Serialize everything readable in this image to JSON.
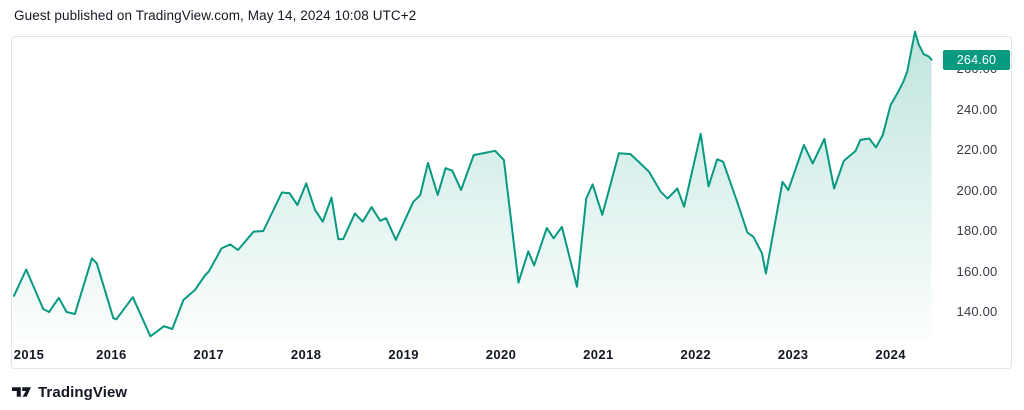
{
  "header": {
    "attribution": "Guest published on TradingView.com, May 14, 2024 10:08 UTC+2"
  },
  "footer": {
    "brand": "TradingView"
  },
  "colors": {
    "accent": "#089981",
    "badge_text": "#ffffff",
    "axis_text": "#363a45",
    "year_text": "#131722",
    "frame_border": "#e0e3eb",
    "background": "#ffffff",
    "header_text": "#131722"
  },
  "chart_data": {
    "type": "area",
    "title": "",
    "xlabel": "",
    "ylabel": "",
    "x_range": [
      "2015-01",
      "2024-05"
    ],
    "ylim": [
      126,
      280
    ],
    "grid": false,
    "legend": false,
    "last_price": 264.6,
    "last_price_label": "264.60",
    "x_ticks": [
      "2015",
      "2016",
      "2017",
      "2018",
      "2019",
      "2020",
      "2021",
      "2022",
      "2023",
      "2024"
    ],
    "y_ticks": [
      {
        "value": 140,
        "label": "140.00"
      },
      {
        "value": 160,
        "label": "160.00"
      },
      {
        "value": 180,
        "label": "180.00"
      },
      {
        "value": 200,
        "label": "200.00"
      },
      {
        "value": 220,
        "label": "220.00"
      },
      {
        "value": 240,
        "label": "240.00"
      },
      {
        "value": 260,
        "label": "260.00"
      }
    ],
    "points": [
      [
        2015.0,
        148.0
      ],
      [
        2015.125,
        161.0
      ],
      [
        2015.3,
        141.5
      ],
      [
        2015.36,
        140.0
      ],
      [
        2015.46,
        147.0
      ],
      [
        2015.54,
        140.0
      ],
      [
        2015.625,
        139.0
      ],
      [
        2015.8,
        166.5
      ],
      [
        2015.85,
        164.0
      ],
      [
        2016.02,
        137.0
      ],
      [
        2016.05,
        136.4
      ],
      [
        2016.22,
        147.3
      ],
      [
        2016.4,
        128.0
      ],
      [
        2016.54,
        133.0
      ],
      [
        2016.625,
        131.6
      ],
      [
        2016.74,
        146.0
      ],
      [
        2016.86,
        151.0
      ],
      [
        2016.96,
        158.0
      ],
      [
        2017.0,
        160.0
      ],
      [
        2017.13,
        171.4
      ],
      [
        2017.22,
        173.4
      ],
      [
        2017.3,
        170.6
      ],
      [
        2017.46,
        179.7
      ],
      [
        2017.56,
        180.0
      ],
      [
        2017.75,
        199.0
      ],
      [
        2017.83,
        198.6
      ],
      [
        2017.91,
        192.8
      ],
      [
        2018.0,
        203.5
      ],
      [
        2018.09,
        190.4
      ],
      [
        2018.17,
        184.6
      ],
      [
        2018.26,
        196.5
      ],
      [
        2018.33,
        176.0
      ],
      [
        2018.38,
        176.0
      ],
      [
        2018.5,
        188.7
      ],
      [
        2018.58,
        184.6
      ],
      [
        2018.67,
        191.8
      ],
      [
        2018.76,
        185.1
      ],
      [
        2018.82,
        186.3
      ],
      [
        2018.92,
        175.6
      ],
      [
        2019.1,
        194.4
      ],
      [
        2019.17,
        197.7
      ],
      [
        2019.25,
        213.7
      ],
      [
        2019.35,
        197.8
      ],
      [
        2019.43,
        211.0
      ],
      [
        2019.5,
        209.8
      ],
      [
        2019.59,
        200.3
      ],
      [
        2019.72,
        217.5
      ],
      [
        2019.81,
        218.3
      ],
      [
        2019.94,
        219.6
      ],
      [
        2020.03,
        215.0
      ],
      [
        2020.18,
        154.5
      ],
      [
        2020.28,
        170.0
      ],
      [
        2020.34,
        163.0
      ],
      [
        2020.47,
        181.5
      ],
      [
        2020.54,
        176.4
      ],
      [
        2020.625,
        182.0
      ],
      [
        2020.78,
        152.5
      ],
      [
        2020.875,
        196.0
      ],
      [
        2020.94,
        203.0
      ],
      [
        2021.04,
        188.0
      ],
      [
        2021.21,
        218.4
      ],
      [
        2021.33,
        218.0
      ],
      [
        2021.43,
        213.4
      ],
      [
        2021.52,
        209.3
      ],
      [
        2021.64,
        199.4
      ],
      [
        2021.71,
        196.0
      ],
      [
        2021.81,
        201.0
      ],
      [
        2021.88,
        192.0
      ],
      [
        2022.05,
        228.0
      ],
      [
        2022.13,
        202.0
      ],
      [
        2022.22,
        215.4
      ],
      [
        2022.28,
        214.2
      ],
      [
        2022.43,
        193.7
      ],
      [
        2022.53,
        179.2
      ],
      [
        2022.59,
        177.2
      ],
      [
        2022.68,
        169.0
      ],
      [
        2022.72,
        159.0
      ],
      [
        2022.89,
        204.3
      ],
      [
        2022.95,
        200.2
      ],
      [
        2023.11,
        222.5
      ],
      [
        2023.2,
        213.4
      ],
      [
        2023.32,
        225.5
      ],
      [
        2023.42,
        201.0
      ],
      [
        2023.52,
        214.6
      ],
      [
        2023.64,
        219.5
      ],
      [
        2023.69,
        225.0
      ],
      [
        2023.78,
        225.7
      ],
      [
        2023.85,
        221.3
      ],
      [
        2023.92,
        227.4
      ],
      [
        2024.0,
        242.2
      ],
      [
        2024.07,
        248.0
      ],
      [
        2024.13,
        253.7
      ],
      [
        2024.17,
        258.7
      ],
      [
        2024.25,
        278.4
      ],
      [
        2024.29,
        272.0
      ],
      [
        2024.34,
        267.3
      ],
      [
        2024.39,
        266.2
      ],
      [
        2024.42,
        264.6
      ]
    ]
  }
}
